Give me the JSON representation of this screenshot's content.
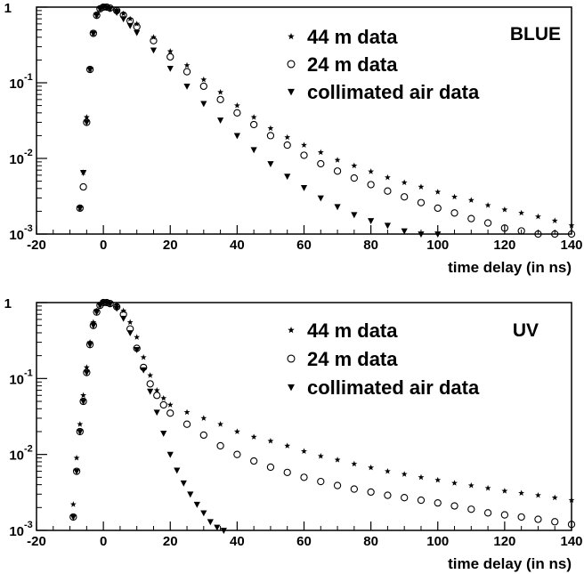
{
  "chart_data": [
    {
      "type": "scatter",
      "title": "BLUE",
      "xlabel": "time delay (in ns)",
      "ylabel": "",
      "xlim": [
        -20,
        140
      ],
      "ylim": [
        0.001,
        1
      ],
      "yscale": "log",
      "x_ticks": [
        "-20",
        "0",
        "20",
        "40",
        "60",
        "80",
        "100",
        "120",
        "140"
      ],
      "y_ticks": [
        {
          "base": "1",
          "exp": ""
        },
        {
          "base": "10",
          "exp": "-1"
        },
        {
          "base": "10",
          "exp": "-2"
        },
        {
          "base": "10",
          "exp": "-3"
        }
      ],
      "legend_position": "top-right",
      "series": [
        {
          "name": "44 m data",
          "marker": "star",
          "color": "#000000",
          "x": [
            -7,
            -6,
            -5,
            -4,
            -3,
            -2,
            -1,
            0,
            1,
            2,
            4,
            6,
            8,
            10,
            15,
            20,
            25,
            30,
            35,
            40,
            45,
            50,
            55,
            60,
            65,
            70,
            75,
            80,
            85,
            90,
            95,
            100,
            105,
            110,
            115,
            120,
            125,
            130,
            135,
            140
          ],
          "y": [
            0.0022,
            0.0065,
            0.035,
            0.15,
            0.45,
            0.78,
            0.95,
            1.0,
            1.0,
            0.98,
            0.92,
            0.82,
            0.7,
            0.6,
            0.4,
            0.26,
            0.17,
            0.11,
            0.075,
            0.05,
            0.035,
            0.025,
            0.019,
            0.015,
            0.012,
            0.0095,
            0.008,
            0.0067,
            0.0056,
            0.0048,
            0.0042,
            0.0036,
            0.0031,
            0.0028,
            0.0024,
            0.0021,
            0.0019,
            0.0017,
            0.0015,
            0.0013
          ]
        },
        {
          "name": "24 m data",
          "marker": "circle",
          "color": "#000000",
          "x": [
            -7,
            -6,
            -5,
            -4,
            -3,
            -2,
            -1,
            0,
            1,
            2,
            4,
            6,
            8,
            10,
            15,
            20,
            25,
            30,
            35,
            40,
            45,
            50,
            55,
            60,
            65,
            70,
            75,
            80,
            85,
            90,
            95,
            100,
            105,
            110,
            115,
            120,
            125,
            130,
            135,
            140
          ],
          "y": [
            0.0022,
            0.0042,
            0.03,
            0.15,
            0.45,
            0.78,
            0.95,
            1.0,
            1.0,
            0.97,
            0.9,
            0.78,
            0.66,
            0.55,
            0.36,
            0.22,
            0.14,
            0.09,
            0.06,
            0.04,
            0.028,
            0.02,
            0.015,
            0.011,
            0.0085,
            0.0068,
            0.0055,
            0.0045,
            0.0037,
            0.0031,
            0.0026,
            0.0022,
            0.0019,
            0.0016,
            0.0014,
            0.0012,
            0.0011,
            0.001,
            0.001,
            0.001
          ]
        },
        {
          "name": "collimated air data",
          "marker": "triangle-down",
          "color": "#000000",
          "x": [
            -7,
            -6,
            -5,
            -4,
            -3,
            -2,
            -1,
            0,
            1,
            2,
            4,
            6,
            8,
            10,
            15,
            20,
            25,
            30,
            35,
            40,
            45,
            50,
            55,
            60,
            65,
            70,
            75,
            80,
            85,
            90,
            95,
            100
          ],
          "y": [
            0.0022,
            0.0065,
            0.03,
            0.15,
            0.45,
            0.78,
            0.95,
            1.0,
            0.99,
            0.95,
            0.85,
            0.7,
            0.57,
            0.46,
            0.27,
            0.155,
            0.09,
            0.053,
            0.032,
            0.02,
            0.013,
            0.0085,
            0.0058,
            0.0041,
            0.003,
            0.0023,
            0.0018,
            0.0015,
            0.0013,
            0.0011,
            0.001,
            0.001
          ]
        }
      ]
    },
    {
      "type": "scatter",
      "title": "UV",
      "xlabel": "time delay (in ns)",
      "ylabel": "",
      "xlim": [
        -20,
        140
      ],
      "ylim": [
        0.001,
        1
      ],
      "yscale": "log",
      "x_ticks": [
        "-20",
        "0",
        "20",
        "40",
        "60",
        "80",
        "100",
        "120",
        "140"
      ],
      "y_ticks": [
        {
          "base": "1",
          "exp": ""
        },
        {
          "base": "10",
          "exp": "-1"
        },
        {
          "base": "10",
          "exp": "-2"
        },
        {
          "base": "10",
          "exp": "-3"
        }
      ],
      "legend_position": "top-right",
      "series": [
        {
          "name": "44 m data",
          "marker": "star",
          "color": "#000000",
          "x": [
            -9,
            -8,
            -7,
            -6,
            -5,
            -4,
            -3,
            -2,
            -1,
            0,
            1,
            2,
            4,
            6,
            8,
            10,
            12,
            14,
            16,
            18,
            20,
            25,
            30,
            35,
            40,
            45,
            50,
            55,
            60,
            65,
            70,
            75,
            80,
            85,
            90,
            95,
            100,
            105,
            110,
            115,
            120,
            125,
            130,
            135,
            140
          ],
          "y": [
            0.0022,
            0.009,
            0.025,
            0.06,
            0.14,
            0.3,
            0.55,
            0.78,
            0.93,
            1.0,
            1.0,
            0.98,
            0.92,
            0.78,
            0.55,
            0.35,
            0.19,
            0.11,
            0.07,
            0.055,
            0.045,
            0.036,
            0.03,
            0.025,
            0.02,
            0.017,
            0.015,
            0.013,
            0.011,
            0.0095,
            0.0085,
            0.0075,
            0.0067,
            0.006,
            0.0055,
            0.005,
            0.0046,
            0.0042,
            0.0039,
            0.0036,
            0.0033,
            0.0031,
            0.0029,
            0.0027,
            0.0025
          ]
        },
        {
          "name": "24 m data",
          "marker": "circle",
          "color": "#000000",
          "x": [
            -9,
            -8,
            -7,
            -6,
            -5,
            -4,
            -3,
            -2,
            -1,
            0,
            1,
            2,
            4,
            6,
            8,
            10,
            12,
            14,
            16,
            18,
            20,
            25,
            30,
            35,
            40,
            45,
            50,
            55,
            60,
            65,
            70,
            75,
            80,
            85,
            90,
            95,
            100,
            105,
            110,
            115,
            120,
            125,
            130,
            135,
            140
          ],
          "y": [
            0.0015,
            0.006,
            0.02,
            0.05,
            0.12,
            0.28,
            0.5,
            0.75,
            0.92,
            1.0,
            1.0,
            0.97,
            0.88,
            0.7,
            0.45,
            0.25,
            0.14,
            0.085,
            0.06,
            0.045,
            0.035,
            0.025,
            0.018,
            0.013,
            0.01,
            0.0082,
            0.0068,
            0.0058,
            0.005,
            0.0044,
            0.0039,
            0.0035,
            0.0032,
            0.0029,
            0.0027,
            0.0025,
            0.0023,
            0.0021,
            0.0019,
            0.0017,
            0.0016,
            0.0015,
            0.0014,
            0.0013,
            0.0012
          ]
        },
        {
          "name": "collimated air data",
          "marker": "triangle-down",
          "color": "#000000",
          "x": [
            -9,
            -8,
            -7,
            -6,
            -5,
            -4,
            -3,
            -2,
            -1,
            0,
            1,
            2,
            4,
            6,
            8,
            10,
            12,
            14,
            16,
            18,
            20,
            22,
            24,
            26,
            28,
            30,
            32,
            34,
            36
          ],
          "y": [
            0.0015,
            0.006,
            0.02,
            0.05,
            0.12,
            0.28,
            0.5,
            0.75,
            0.92,
            1.0,
            1.0,
            0.96,
            0.84,
            0.62,
            0.4,
            0.24,
            0.13,
            0.068,
            0.036,
            0.019,
            0.01,
            0.0062,
            0.0042,
            0.003,
            0.0022,
            0.0017,
            0.0013,
            0.0011,
            0.001
          ]
        }
      ]
    }
  ]
}
